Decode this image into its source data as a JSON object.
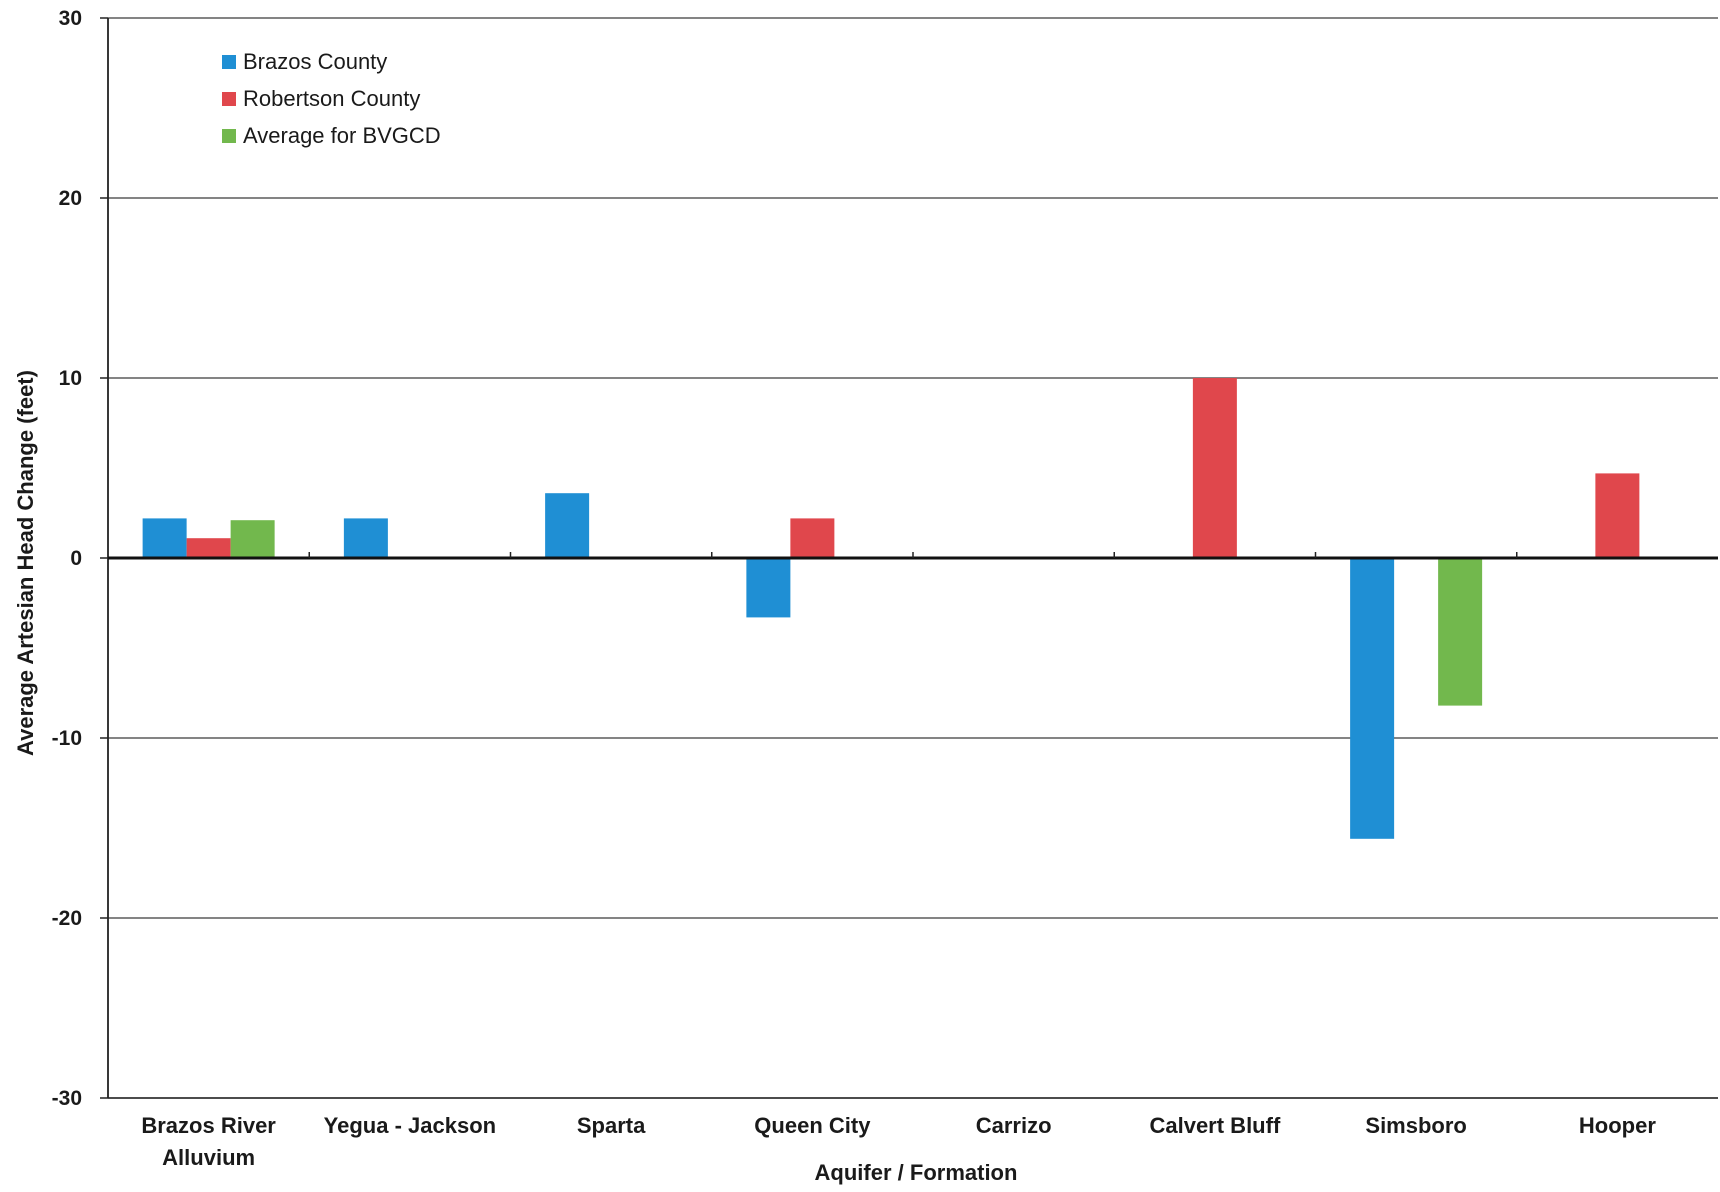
{
  "chart_data": {
    "type": "bar",
    "categories": [
      [
        "Brazos River",
        "Alluvium"
      ],
      [
        "Yegua - Jackson"
      ],
      [
        "Sparta"
      ],
      [
        "Queen City"
      ],
      [
        "Carrizo"
      ],
      [
        "Calvert Bluff"
      ],
      [
        "Simsboro"
      ],
      [
        "Hooper"
      ]
    ],
    "series": [
      {
        "name": "Brazos County",
        "color": "#1f8fd4",
        "values": [
          2.2,
          2.2,
          3.6,
          -3.3,
          null,
          null,
          -15.6,
          null
        ]
      },
      {
        "name": "Robertson County",
        "color": "#e0474c",
        "values": [
          1.1,
          null,
          null,
          2.2,
          null,
          10.0,
          null,
          4.7
        ]
      },
      {
        "name": "Average for BVGCD",
        "color": "#72b84d",
        "values": [
          2.1,
          null,
          null,
          null,
          null,
          null,
          -8.2,
          null
        ]
      }
    ],
    "xlabel": "Aquifer / Formation",
    "ylabel": "Average Artesian Head Change (feet)",
    "ylim": [
      -30,
      30
    ],
    "yticks": [
      30,
      20,
      10,
      0,
      -10,
      -20,
      -30
    ],
    "grid": true,
    "legend_position": "top-left"
  }
}
